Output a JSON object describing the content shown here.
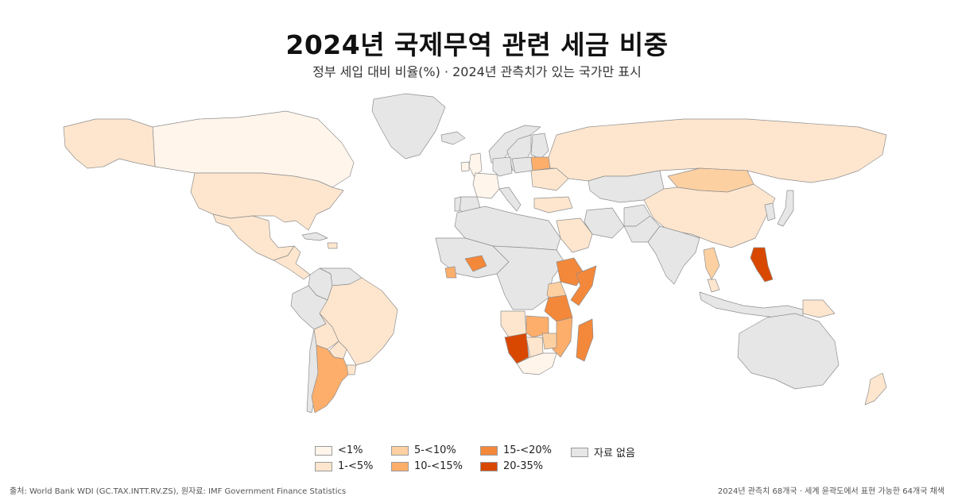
{
  "title": "2024년 국제무역 관련 세금 비중",
  "subtitle": "정부 세입 대비 비율(%) · 2024년 관측치가 있는 국가만 표시",
  "colors": {
    "lt1": "#fff5eb",
    "1to5": "#fee6ce",
    "5to10": "#fdd0a2",
    "10to15": "#fdae6b",
    "15to20": "#f4883a",
    "20to35": "#d94801",
    "none": "#e6e6e6"
  },
  "legend": [
    {
      "key": "lt1",
      "label": "<1%"
    },
    {
      "key": "1to5",
      "label": "1-<5%"
    },
    {
      "key": "5to10",
      "label": "5-<10%"
    },
    {
      "key": "10to15",
      "label": "10-<15%"
    },
    {
      "key": "15to20",
      "label": "15-<20%"
    },
    {
      "key": "20to35",
      "label": "20-35%"
    },
    {
      "key": "none",
      "label": "자료 없음"
    }
  ],
  "source": "출처: World Bank WDI (GC.TAX.INTT.RV.ZS), 원자료: IMF Government Finance Statistics",
  "note": "2024년 관측치 68개국 · 세계 윤곽도에서 표현 가능한 64개국 채색",
  "map": {
    "countries": [
      {
        "name": "Canada",
        "cls": "lt1"
      },
      {
        "name": "Alaska",
        "cls": "1to5"
      },
      {
        "name": "United States",
        "cls": "1to5"
      },
      {
        "name": "Greenland",
        "cls": "none"
      },
      {
        "name": "Mexico",
        "cls": "1to5"
      },
      {
        "name": "Central America",
        "cls": "1to5"
      },
      {
        "name": "Cuba",
        "cls": "none"
      },
      {
        "name": "Dominican Rep.",
        "cls": "1to5"
      },
      {
        "name": "Colombia",
        "cls": "none"
      },
      {
        "name": "Venezuela",
        "cls": "none"
      },
      {
        "name": "Brazil",
        "cls": "1to5"
      },
      {
        "name": "Peru",
        "cls": "none"
      },
      {
        "name": "Bolivia",
        "cls": "1to5"
      },
      {
        "name": "Paraguay",
        "cls": "1to5"
      },
      {
        "name": "Chile",
        "cls": "none"
      },
      {
        "name": "Argentina",
        "cls": "10to15"
      },
      {
        "name": "Uruguay",
        "cls": "1to5"
      },
      {
        "name": "Iceland",
        "cls": "none"
      },
      {
        "name": "Norway",
        "cls": "none"
      },
      {
        "name": "Sweden",
        "cls": "none"
      },
      {
        "name": "Finland",
        "cls": "none"
      },
      {
        "name": "United Kingdom",
        "cls": "lt1"
      },
      {
        "name": "Ireland",
        "cls": "lt1"
      },
      {
        "name": "France",
        "cls": "lt1"
      },
      {
        "name": "Spain",
        "cls": "none"
      },
      {
        "name": "Portugal",
        "cls": "none"
      },
      {
        "name": "Germany",
        "cls": "none"
      },
      {
        "name": "Italy",
        "cls": "none"
      },
      {
        "name": "Poland",
        "cls": "none"
      },
      {
        "name": "Belarus",
        "cls": "10to15"
      },
      {
        "name": "Ukraine",
        "cls": "1to5"
      },
      {
        "name": "Turkey",
        "cls": "1to5"
      },
      {
        "name": "Russia",
        "cls": "1to5"
      },
      {
        "name": "Kazakhstan",
        "cls": "none"
      },
      {
        "name": "Mongolia",
        "cls": "5to10"
      },
      {
        "name": "China",
        "cls": "1to5"
      },
      {
        "name": "Korea",
        "cls": "none"
      },
      {
        "name": "Japan",
        "cls": "none"
      },
      {
        "name": "Iran",
        "cls": "none"
      },
      {
        "name": "Afghanistan",
        "cls": "none"
      },
      {
        "name": "Pakistan",
        "cls": "none"
      },
      {
        "name": "India",
        "cls": "none"
      },
      {
        "name": "Saudi Arabia",
        "cls": "1to5"
      },
      {
        "name": "Thailand",
        "cls": "5to10"
      },
      {
        "name": "Malaysia",
        "cls": "1to5"
      },
      {
        "name": "Indonesia",
        "cls": "none"
      },
      {
        "name": "Philippines",
        "cls": "20to35"
      },
      {
        "name": "Papua New Guinea",
        "cls": "1to5"
      },
      {
        "name": "Australia",
        "cls": "none"
      },
      {
        "name": "New Zealand",
        "cls": "1to5"
      },
      {
        "name": "North Africa",
        "cls": "none"
      },
      {
        "name": "West Africa",
        "cls": "none"
      },
      {
        "name": "Sierra Leone",
        "cls": "10to15"
      },
      {
        "name": "Burkina Faso",
        "cls": "15to20"
      },
      {
        "name": "Central Africa",
        "cls": "none"
      },
      {
        "name": "Ethiopia",
        "cls": "15to20"
      },
      {
        "name": "Somalia",
        "cls": "15to20"
      },
      {
        "name": "Uganda",
        "cls": "5to10"
      },
      {
        "name": "Tanzania",
        "cls": "15to20"
      },
      {
        "name": "Angola",
        "cls": "1to5"
      },
      {
        "name": "Zambia",
        "cls": "10to15"
      },
      {
        "name": "Mozambique",
        "cls": "10to15"
      },
      {
        "name": "Madagascar",
        "cls": "15to20"
      },
      {
        "name": "Namibia",
        "cls": "20to35"
      },
      {
        "name": "Botswana",
        "cls": "1to5"
      },
      {
        "name": "Zimbabwe",
        "cls": "5to10"
      },
      {
        "name": "South Africa",
        "cls": "lt1"
      }
    ]
  }
}
